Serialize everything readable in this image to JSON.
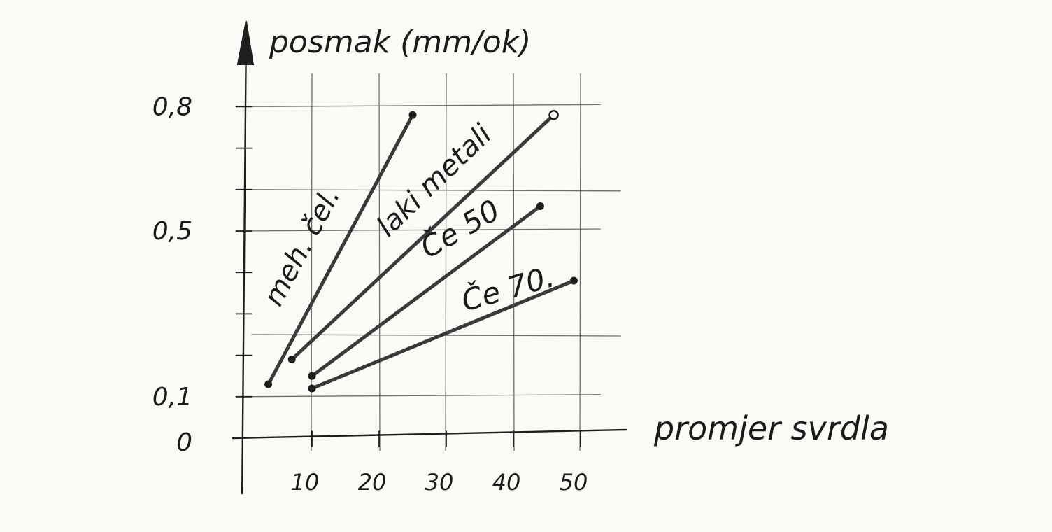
{
  "chart_data": {
    "type": "line",
    "ylabel": "posmak (mm/ok)",
    "xlabel": "promjer svrdla",
    "x_ticks": [
      10,
      20,
      30,
      40,
      50
    ],
    "y_ticks": [
      {
        "value": 0,
        "label": "0"
      },
      {
        "value": 0.1,
        "label": "0,1"
      },
      {
        "value": 0.5,
        "label": "0,5"
      },
      {
        "value": 0.8,
        "label": "0,8"
      }
    ],
    "xlim": [
      0,
      60
    ],
    "ylim": [
      0,
      0.95
    ],
    "grid": true,
    "series": [
      {
        "name": "meh. čel.",
        "x": [
          3.5,
          25
        ],
        "y": [
          0.13,
          0.78
        ],
        "end_marker": "filled",
        "start_marker": "filled"
      },
      {
        "name": "laki metali",
        "x": [
          7,
          46
        ],
        "y": [
          0.19,
          0.78
        ],
        "end_marker": "open",
        "start_marker": "filled"
      },
      {
        "name": "Če 50",
        "x": [
          10,
          44
        ],
        "y": [
          0.15,
          0.56
        ],
        "end_marker": "filled",
        "start_marker": "filled"
      },
      {
        "name": "Če 70.",
        "x": [
          10,
          49
        ],
        "y": [
          0.12,
          0.38
        ],
        "end_marker": "filled",
        "start_marker": "filled"
      }
    ]
  }
}
